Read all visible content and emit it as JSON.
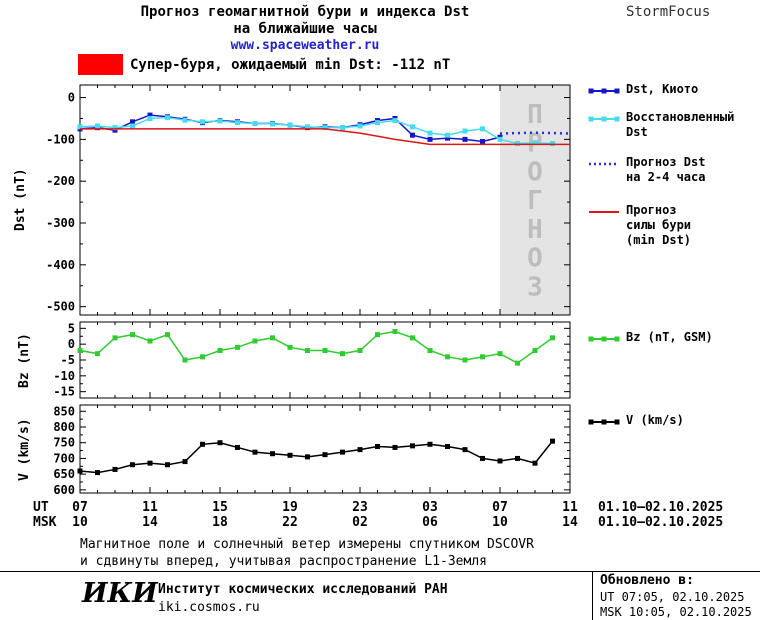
{
  "header": {
    "title_line1": "Прогноз геомагнитной бури и индекса Dst",
    "title_line2": "на ближайшие часы",
    "subtitle": "www.spaceweather.ru",
    "brand": "StormFocus"
  },
  "alert": {
    "label": "Супер-буря, ожидаемый min Dst: -112 nT",
    "swatch_color": "#ff0000"
  },
  "legend": {
    "items": [
      {
        "label": "Dst, Киото",
        "color": "#1616c8",
        "marker": "square"
      },
      {
        "label": "Восстановленный\nDst",
        "color": "#44dcee",
        "marker": "square"
      },
      {
        "label": "Прогноз Dst\nна 2-4 часа",
        "color": "#2a2ae0",
        "dash": "dotted",
        "width": 2.5
      },
      {
        "label": "Прогноз\nсилы бури\n(min Dst)",
        "color": "#dd1515"
      },
      {
        "label": "Bz (nT, GSM)",
        "color": "#2ecc2e",
        "marker": "square"
      },
      {
        "label": "V (km/s)",
        "color": "#000000",
        "marker": "square"
      }
    ]
  },
  "chart_data": [
    {
      "id": "dst",
      "type": "line",
      "ylabel": "Dst (nT)",
      "xlim": [
        7,
        35
      ],
      "ylim": [
        -520,
        30
      ],
      "yticks": [
        0,
        -100,
        -200,
        -300,
        -400,
        -500
      ],
      "xticks": [
        7,
        11,
        15,
        19,
        23,
        27,
        31,
        35
      ],
      "forecast_region": {
        "from": 31,
        "to": 35,
        "label": "ПРОГНОЗ",
        "fill": "#e4e4e4",
        "text_color": "#bdbdbd"
      },
      "series": [
        {
          "name": "Dst, Киото",
          "color": "#1616c8",
          "marker": "square",
          "x": [
            7,
            8,
            9,
            10,
            11,
            12,
            13,
            14,
            15,
            16,
            17,
            18,
            19,
            20,
            21,
            22,
            23,
            24,
            25,
            26,
            27,
            28,
            29,
            30,
            31
          ],
          "values": [
            -75,
            -72,
            -78,
            -58,
            -42,
            -46,
            -52,
            -60,
            -55,
            -58,
            -62,
            -62,
            -66,
            -72,
            -70,
            -72,
            -65,
            -55,
            -50,
            -90,
            -100,
            -97,
            -100,
            -105,
            -95
          ]
        },
        {
          "name": "Восстановленный Dst",
          "color": "#44dcee",
          "marker": "square",
          "x": [
            7,
            8,
            9,
            10,
            11,
            12,
            13,
            14,
            15,
            16,
            17,
            18,
            19,
            20,
            21,
            22,
            23,
            24,
            25,
            26,
            27,
            28,
            29,
            30,
            31,
            32,
            33,
            34
          ],
          "values": [
            -70,
            -68,
            -72,
            -68,
            -50,
            -48,
            -54,
            -58,
            -56,
            -60,
            -62,
            -63,
            -66,
            -70,
            -72,
            -72,
            -68,
            -60,
            -55,
            -70,
            -85,
            -90,
            -80,
            -75,
            -100,
            -110,
            -108,
            -110
          ]
        },
        {
          "name": "Прогноз Dst на 2-4 часа",
          "color": "#2a2ae0",
          "dash": "dotted",
          "width": 2.5,
          "x": [
            31,
            32,
            33,
            34,
            35
          ],
          "values": [
            -86,
            -85,
            -84,
            -85,
            -86
          ]
        },
        {
          "name": "Прогноз силы бури (min Dst)",
          "color": "#dd1515",
          "x": [
            7,
            21,
            23,
            25,
            27,
            35
          ],
          "values": [
            -75,
            -75,
            -85,
            -100,
            -112,
            -112
          ]
        }
      ]
    },
    {
      "id": "bz",
      "type": "line",
      "ylabel": "Bz (nT)",
      "xlim": [
        7,
        35
      ],
      "ylim": [
        -17,
        7
      ],
      "yticks": [
        5,
        0,
        -5,
        -10,
        -15
      ],
      "xticks": [
        7,
        11,
        15,
        19,
        23,
        27,
        31,
        35
      ],
      "series": [
        {
          "name": "Bz (nT, GSM)",
          "color": "#2ecc2e",
          "marker": "square",
          "x": [
            7,
            8,
            9,
            10,
            11,
            12,
            13,
            14,
            15,
            16,
            17,
            18,
            19,
            20,
            21,
            22,
            23,
            24,
            25,
            26,
            27,
            28,
            29,
            30,
            31,
            32,
            33,
            34
          ],
          "values": [
            -2,
            -3,
            2,
            3,
            1,
            3,
            -5,
            -4,
            -2,
            -1,
            1,
            2,
            -1,
            -2,
            -2,
            -3,
            -2,
            3,
            4,
            2,
            -2,
            -4,
            -5,
            -4,
            -3,
            -6,
            -2,
            2
          ]
        }
      ]
    },
    {
      "id": "v",
      "type": "line",
      "ylabel": "V (km/s)",
      "xlim": [
        7,
        35
      ],
      "ylim": [
        590,
        870
      ],
      "yticks": [
        850,
        800,
        750,
        700,
        650,
        600
      ],
      "xticks": [
        7,
        11,
        15,
        19,
        23,
        27,
        31,
        35
      ],
      "series": [
        {
          "name": "V (km/s)",
          "color": "#000000",
          "marker": "square",
          "x": [
            7,
            8,
            9,
            10,
            11,
            12,
            13,
            14,
            15,
            16,
            17,
            18,
            19,
            20,
            21,
            22,
            23,
            24,
            25,
            26,
            27,
            28,
            29,
            30,
            31,
            32,
            33,
            34
          ],
          "values": [
            660,
            655,
            665,
            680,
            685,
            680,
            690,
            745,
            750,
            735,
            720,
            715,
            710,
            705,
            712,
            720,
            728,
            738,
            735,
            740,
            745,
            738,
            728,
            700,
            692,
            700,
            685,
            755
          ]
        }
      ]
    }
  ],
  "xaxis": {
    "ut_label": "UT",
    "msk_label": "MSK",
    "ut_ticks": [
      "07",
      "11",
      "15",
      "19",
      "23",
      "03",
      "07",
      "11"
    ],
    "msk_ticks": [
      "10",
      "14",
      "18",
      "22",
      "02",
      "06",
      "10",
      "14"
    ],
    "ut_date": "01.10–02.10.2025",
    "msk_date": "01.10–02.10.2025"
  },
  "footer": {
    "note_line1": "Магнитное поле и солнечный ветер измерены спутником DSCOVR",
    "note_line2": "и сдвинуты вперед, учитывая распространение L1-Земля",
    "logo": "ИКИ",
    "institute": "Институт космических исследований РАН",
    "site": "iki.cosmos.ru",
    "updated_label": "Обновлено в:",
    "updated_ut": "UT  07:05, 02.10.2025",
    "updated_msk": "MSK 10:05, 02.10.2025"
  }
}
